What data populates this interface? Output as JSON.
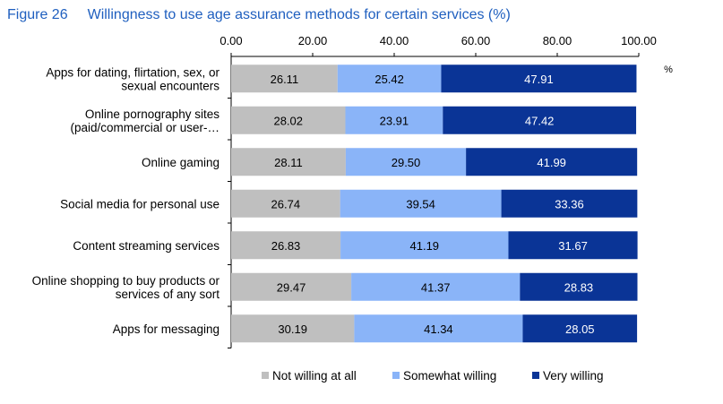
{
  "figure": {
    "number": "Figure 26",
    "title": "Willingness to use age assurance methods for certain services (%)"
  },
  "chart_data": {
    "type": "bar",
    "orientation": "horizontal",
    "stacked": true,
    "unit_label": "%",
    "xlim": [
      0,
      100
    ],
    "x_ticks": [
      "0.00",
      "20.00",
      "40.00",
      "60.00",
      "80.00",
      "100.00"
    ],
    "categories": [
      [
        "Apps for dating, flirtation, sex, or",
        "sexual encounters"
      ],
      [
        "Online pornography sites",
        "(paid/commercial or user-…"
      ],
      [
        "Online gaming"
      ],
      [
        "Social media for personal use"
      ],
      [
        "Content streaming services"
      ],
      [
        "Online shopping to buy products or",
        "services of any sort"
      ],
      [
        "Apps for messaging"
      ]
    ],
    "series": [
      {
        "name": "Not willing at all",
        "color": "#bfbfbf",
        "label_color": "#000000",
        "values": [
          26.11,
          28.02,
          28.11,
          26.74,
          26.83,
          29.47,
          30.19
        ]
      },
      {
        "name": "Somewhat willing",
        "color": "#8ab4f8",
        "label_color": "#000000",
        "values": [
          25.42,
          23.91,
          29.5,
          39.54,
          41.19,
          41.37,
          41.34
        ]
      },
      {
        "name": "Very willing",
        "color": "#0a3496",
        "label_color": "#ffffff",
        "values": [
          47.91,
          47.42,
          41.99,
          33.36,
          31.67,
          28.83,
          28.05
        ]
      }
    ],
    "legend_position": "bottom",
    "grid": false
  }
}
